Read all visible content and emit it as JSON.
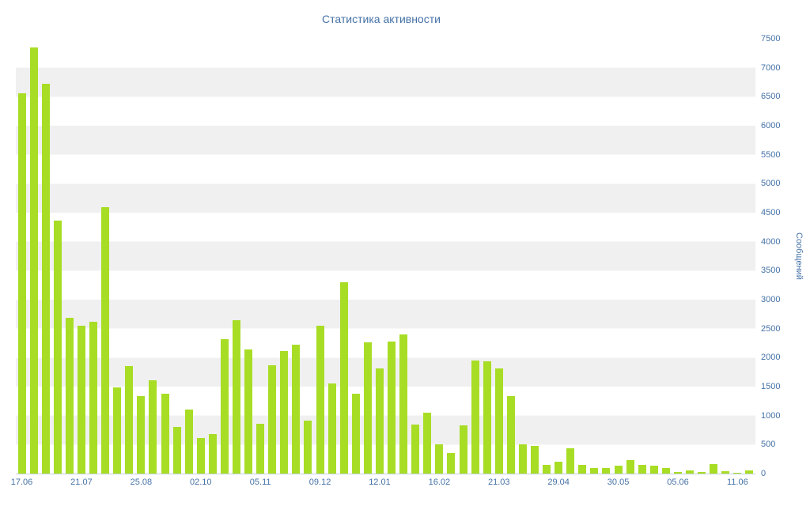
{
  "chart_data": {
    "type": "bar",
    "title": "Статистика активности",
    "ylabel": "Сообщений",
    "xlabel": "",
    "ylim": [
      0,
      7500
    ],
    "ytick_step": 500,
    "xtick_labels": [
      "17.06",
      "21.07",
      "25.08",
      "02.10",
      "05.11",
      "09.12",
      "12.01",
      "16.02",
      "21.03",
      "29.04",
      "30.05",
      "05.06",
      "11.06"
    ],
    "xtick_every": 5,
    "values": [
      6560,
      7350,
      6720,
      4360,
      2680,
      2550,
      2620,
      4600,
      1480,
      1850,
      1340,
      1610,
      1380,
      800,
      1100,
      620,
      680,
      2320,
      2650,
      2140,
      860,
      1870,
      2110,
      2220,
      920,
      2550,
      1560,
      3300,
      1380,
      2260,
      1810,
      2280,
      2400,
      850,
      1050,
      500,
      350,
      830,
      1950,
      1930,
      1820,
      1330,
      500,
      480,
      150,
      200,
      430,
      150,
      100,
      90,
      130,
      230,
      150,
      130,
      100,
      30,
      50,
      30,
      160,
      40,
      20,
      60
    ],
    "legend": "off",
    "grid": "alternating-bands",
    "colors": {
      "bar": "#a8dd25",
      "band": "#f0f0f0",
      "axis_text": "#4572A7",
      "title_text": "#4572A7",
      "axis_line": "#C0D0E0"
    }
  }
}
